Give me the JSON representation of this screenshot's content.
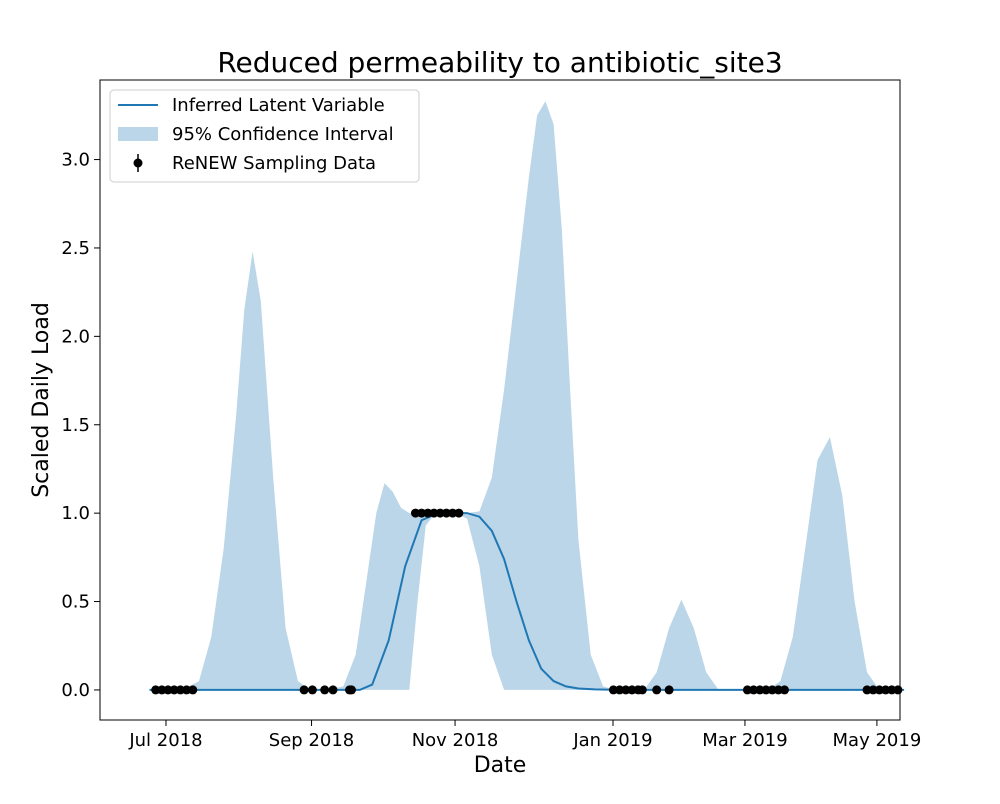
{
  "chart_data": {
    "type": "line",
    "title": "Reduced permeability to antibiotic_site3",
    "xlabel": "Date",
    "ylabel": "Scaled Daily Load",
    "xlim": [
      -1.6,
      17.8
    ],
    "ylim": [
      -0.17,
      3.45
    ],
    "x_unit": "weeks since Jul 2018",
    "x_ticks": [
      {
        "x": 0,
        "label": "Jul 2018"
      },
      {
        "x": 3.53,
        "label": "Sep 2018"
      },
      {
        "x": 7.01,
        "label": "Nov 2018"
      },
      {
        "x": 10.84,
        "label": "Jan 2019"
      },
      {
        "x": 14.04,
        "label": "Mar 2019"
      },
      {
        "x": 17.24,
        "label": "May 2019"
      }
    ],
    "y_ticks": [
      0.0,
      0.5,
      1.0,
      1.5,
      2.0,
      2.5,
      3.0
    ],
    "y_tick_labels": [
      "0.0",
      "0.5",
      "1.0",
      "1.5",
      "2.0",
      "2.5",
      "3.0"
    ],
    "colors": {
      "line": "#1f77b4",
      "band": "#1f77b4",
      "points": "#000000"
    },
    "legend": {
      "position": "top-left",
      "entries": [
        "Inferred Latent Variable",
        "95% Confidence Interval",
        "ReNEW Sampling Data"
      ]
    },
    "series": [
      {
        "name": "Inferred Latent Variable",
        "x": [
          -0.4,
          4.7,
          5.0,
          5.4,
          5.8,
          6.2,
          6.6,
          7.0,
          7.3,
          7.6,
          7.9,
          8.2,
          8.5,
          8.8,
          9.1,
          9.4,
          9.7,
          10.0,
          10.4,
          11.0,
          12.0,
          13.0,
          14.0,
          15.0,
          16.0,
          17.0,
          17.9
        ],
        "y": [
          0.0,
          0.0,
          0.03,
          0.28,
          0.7,
          0.96,
          1.0,
          1.0,
          1.0,
          0.98,
          0.9,
          0.74,
          0.5,
          0.28,
          0.12,
          0.05,
          0.02,
          0.008,
          0.003,
          0.0,
          0.0,
          0.0,
          0.0,
          0.0,
          0.0,
          0.0,
          0.0
        ]
      },
      {
        "name": "95% Confidence Interval",
        "x": [
          -0.4,
          0.4,
          0.8,
          1.1,
          1.4,
          1.7,
          1.9,
          2.1,
          2.3,
          2.6,
          2.9,
          3.2,
          3.5,
          3.9,
          4.3,
          4.6,
          4.85,
          5.1,
          5.3,
          5.5,
          5.7,
          5.9,
          6.1,
          6.3,
          6.5,
          6.7,
          7.0,
          7.3,
          7.6,
          7.9,
          8.2,
          8.5,
          8.8,
          9.0,
          9.2,
          9.4,
          9.6,
          9.8,
          10.0,
          10.3,
          10.6,
          10.9,
          11.2,
          11.6,
          11.9,
          12.2,
          12.5,
          12.8,
          13.1,
          13.4,
          13.7,
          14.0,
          14.3,
          14.6,
          14.9,
          15.2,
          15.5,
          15.8,
          16.1,
          16.4,
          16.7,
          17.0,
          17.3,
          17.6,
          17.9
        ],
        "upper": [
          0.0,
          0.0,
          0.05,
          0.3,
          0.8,
          1.55,
          2.15,
          2.48,
          2.2,
          1.2,
          0.35,
          0.05,
          0.0,
          0.0,
          0.02,
          0.2,
          0.6,
          1.0,
          1.17,
          1.12,
          1.03,
          1.0,
          1.0,
          1.0,
          1.0,
          1.0,
          1.0,
          1.0,
          1.01,
          1.2,
          1.7,
          2.3,
          2.9,
          3.25,
          3.33,
          3.2,
          2.6,
          1.7,
          0.85,
          0.2,
          0.02,
          0.0,
          0.0,
          0.0,
          0.1,
          0.35,
          0.51,
          0.35,
          0.1,
          0.0,
          0.0,
          0.0,
          0.0,
          0.0,
          0.05,
          0.3,
          0.8,
          1.3,
          1.43,
          1.1,
          0.5,
          0.1,
          0.0,
          0.0,
          0.0
        ],
        "lower": [
          0.0,
          0.0,
          0.0,
          0.0,
          0.0,
          0.0,
          0.0,
          0.0,
          0.0,
          0.0,
          0.0,
          0.0,
          0.0,
          0.0,
          0.0,
          0.0,
          0.0,
          0.0,
          0.0,
          0.0,
          0.0,
          0.0,
          0.5,
          0.93,
          0.99,
          1.0,
          1.0,
          0.97,
          0.7,
          0.2,
          0.0,
          0.0,
          0.0,
          0.0,
          0.0,
          0.0,
          0.0,
          0.0,
          0.0,
          0.0,
          0.0,
          0.0,
          0.0,
          0.0,
          0.0,
          0.0,
          0.0,
          0.0,
          0.0,
          0.0,
          0.0,
          0.0,
          0.0,
          0.0,
          0.0,
          0.0,
          0.0,
          0.0,
          0.0,
          0.0,
          0.0,
          0.0,
          0.0,
          0.0,
          0.0
        ]
      },
      {
        "name": "ReNEW Sampling Data",
        "type": "scatter",
        "x": [
          -0.25,
          -0.1,
          0.05,
          0.2,
          0.35,
          0.5,
          0.65,
          3.35,
          3.55,
          3.85,
          4.05,
          4.45,
          4.5,
          6.05,
          6.2,
          6.35,
          6.5,
          6.65,
          6.8,
          6.95,
          7.1,
          10.85,
          11.0,
          11.15,
          11.3,
          11.45,
          11.55,
          11.9,
          12.2,
          14.1,
          14.25,
          14.4,
          14.55,
          14.7,
          14.85,
          15.0,
          17.0,
          17.15,
          17.3,
          17.45,
          17.6,
          17.75
        ],
        "y": [
          0,
          0,
          0,
          0,
          0,
          0,
          0,
          0,
          0,
          0,
          0,
          0,
          0,
          1,
          1,
          1,
          1,
          1,
          1,
          1,
          1,
          0,
          0,
          0,
          0,
          0,
          0,
          0,
          0,
          0,
          0,
          0,
          0,
          0,
          0,
          0,
          0,
          0,
          0,
          0,
          0,
          0
        ]
      }
    ]
  }
}
